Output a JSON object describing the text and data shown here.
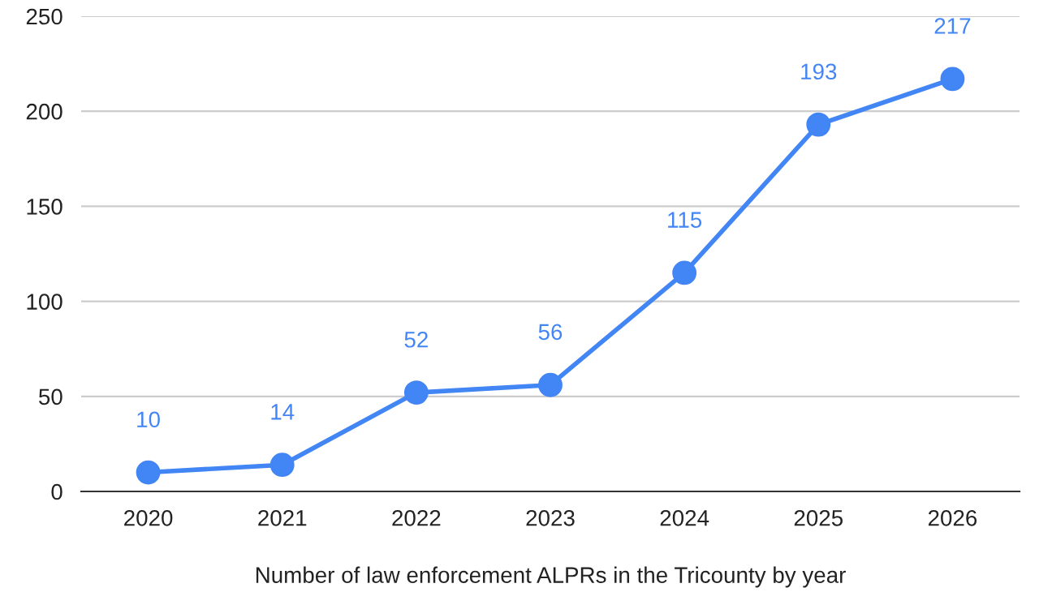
{
  "chart_data": {
    "type": "line",
    "xlabel": "Number of law enforcement ALPRs in the Tricounty by year",
    "categories": [
      "2020",
      "2021",
      "2022",
      "2023",
      "2024",
      "2025",
      "2026"
    ],
    "series": [
      {
        "color": "#4285f4",
        "values": [
          10,
          14,
          52,
          56,
          115,
          193,
          217
        ]
      }
    ],
    "ylim": [
      0,
      250
    ],
    "yticks": [
      0,
      50,
      100,
      150,
      200,
      250
    ],
    "grid": "y",
    "marker": "circle",
    "line_style": "solid",
    "data_labels": true
  }
}
